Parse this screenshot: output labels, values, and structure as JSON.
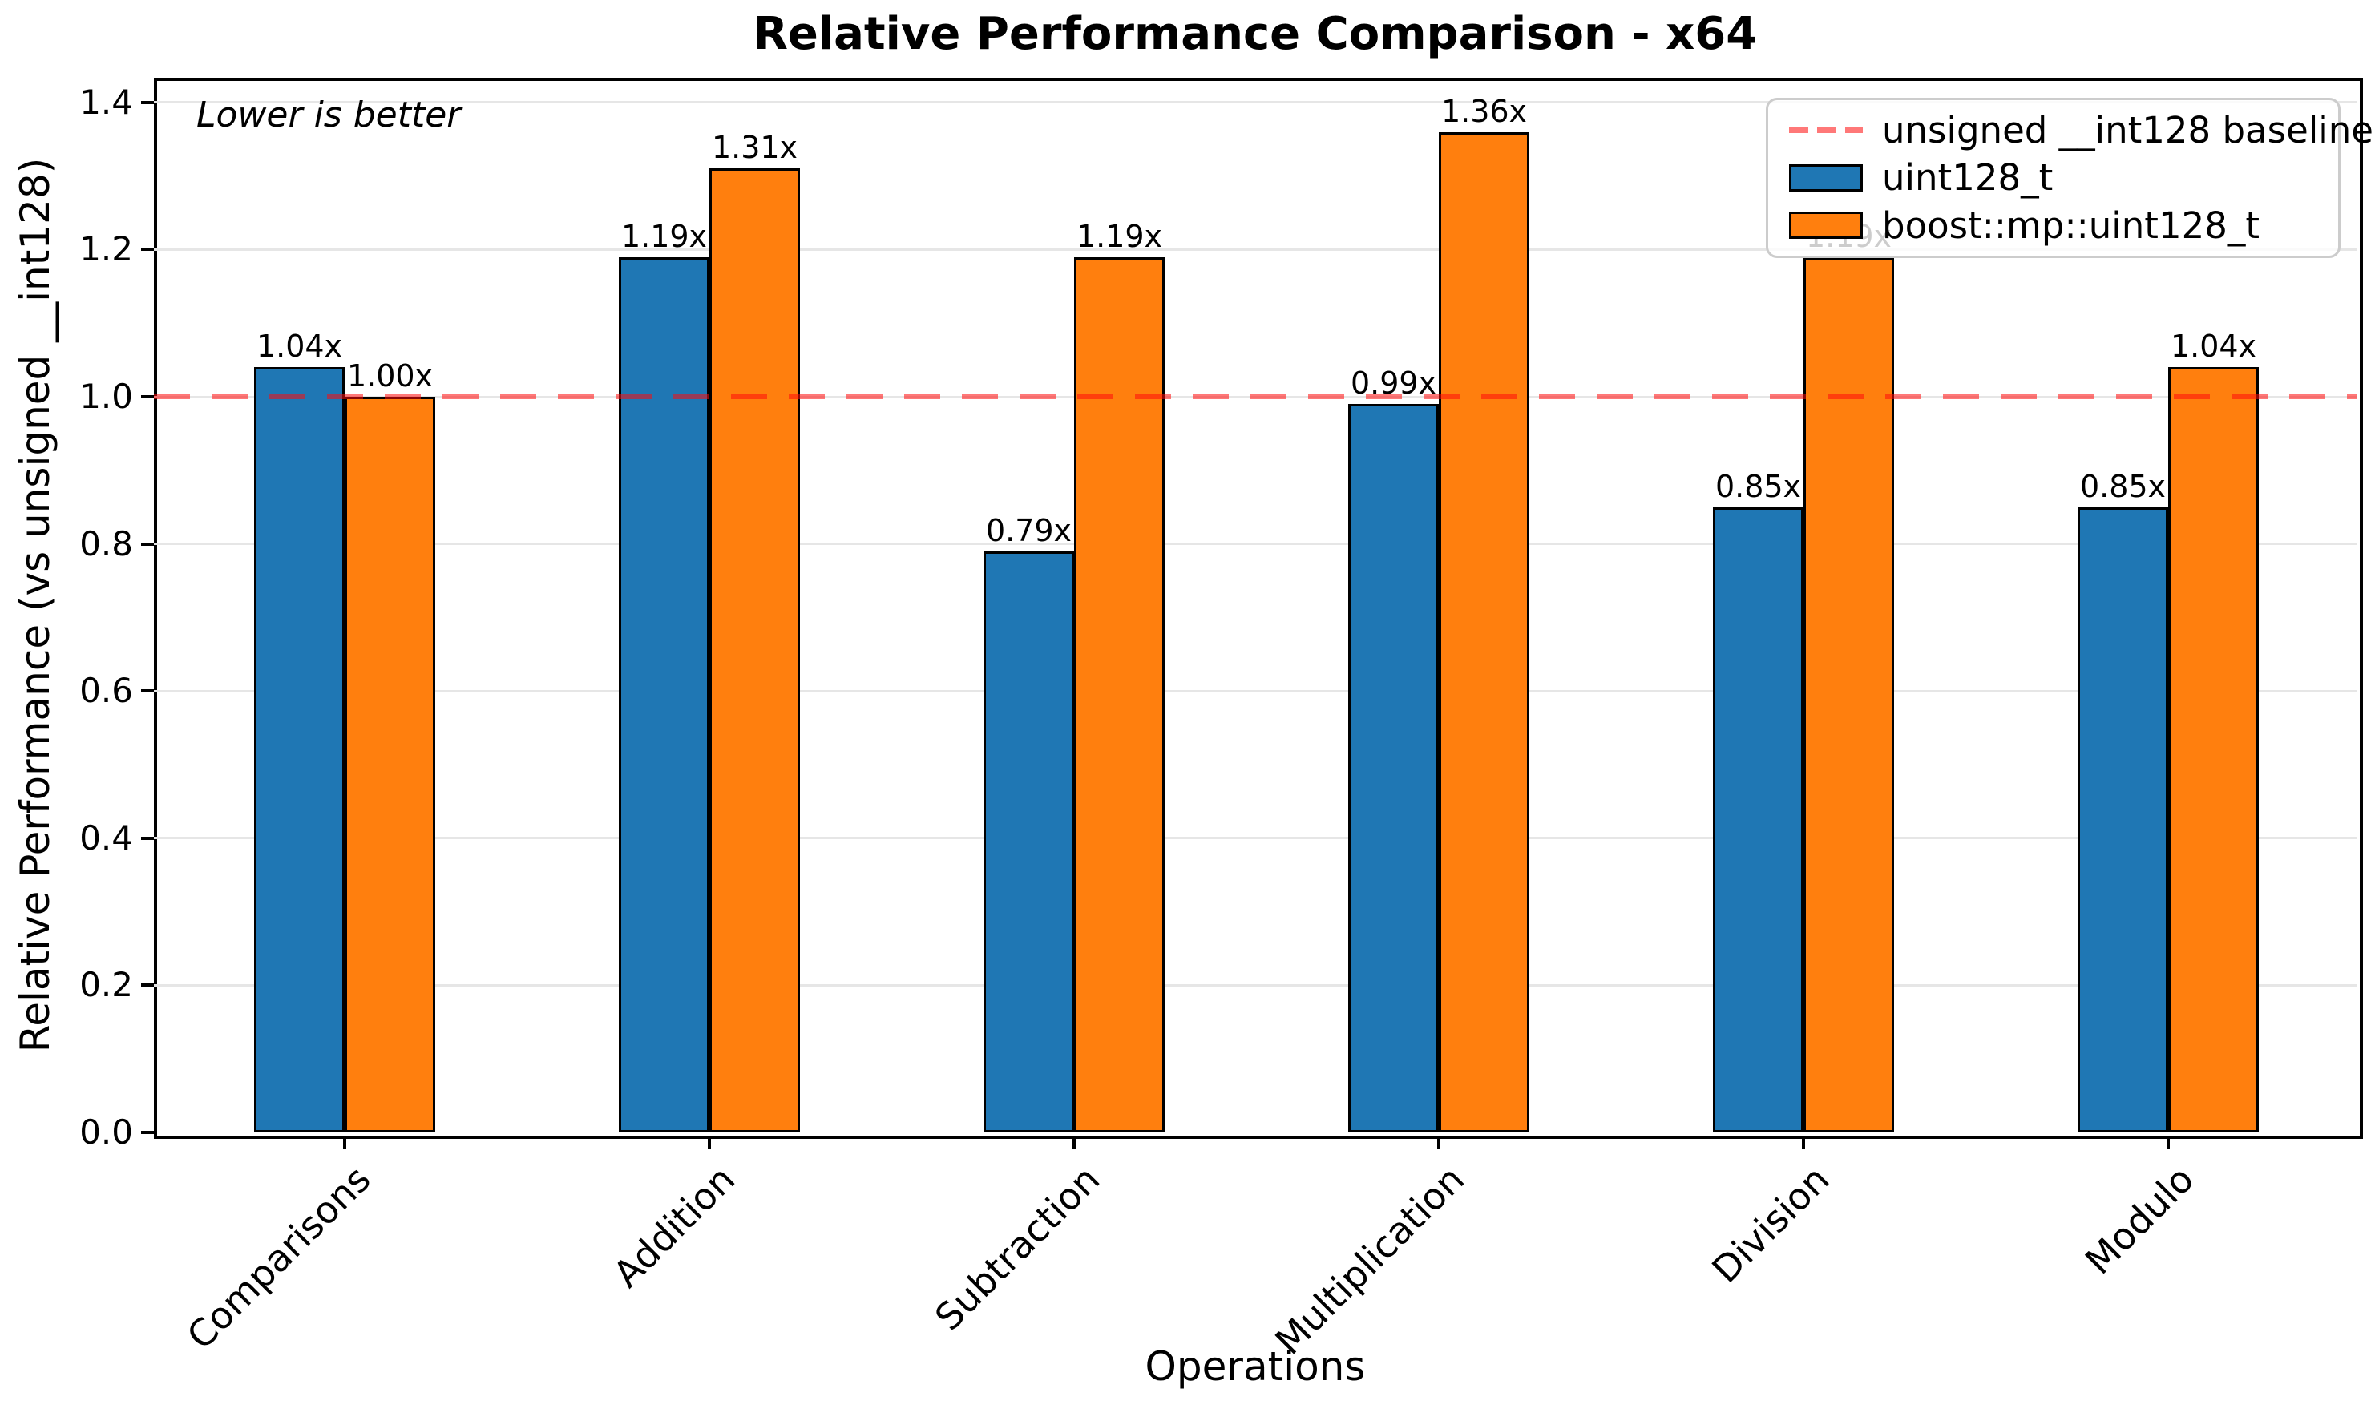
{
  "chart_data": {
    "type": "bar",
    "title": "Relative Performance Comparison - x64",
    "xlabel": "Operations",
    "ylabel": "Relative Performance (vs unsigned __int128)",
    "annotation": "Lower is better",
    "categories": [
      "Comparisons",
      "Addition",
      "Subtraction",
      "Multiplication",
      "Division",
      "Modulo"
    ],
    "series": [
      {
        "name": "uint128_t",
        "color": "#1f77b4",
        "values": [
          1.04,
          1.19,
          0.79,
          0.99,
          0.85,
          0.85
        ],
        "labels": [
          "1.04x",
          "1.19x",
          "0.79x",
          "0.99x",
          "0.85x",
          "0.85x"
        ]
      },
      {
        "name": "boost::mp::uint128_t",
        "color": "#ff7f0e",
        "values": [
          1.0,
          1.31,
          1.19,
          1.36,
          1.19,
          1.04
        ],
        "labels": [
          "1.00x",
          "1.31x",
          "1.19x",
          "1.36x",
          "1.19x",
          "1.04x"
        ]
      }
    ],
    "baseline": {
      "value": 1.0,
      "label": "unsigned __int128 baseline",
      "color": "rgba(255,10,10,0.55)"
    },
    "yticks": [
      "0.0",
      "0.2",
      "0.4",
      "0.6",
      "0.8",
      "1.0",
      "1.2",
      "1.4"
    ],
    "ylim": [
      0,
      1.434
    ],
    "grid": true,
    "legend_position": "upper right",
    "bar_edge_color": "#000000",
    "grid_color": "#e6e6e6"
  }
}
